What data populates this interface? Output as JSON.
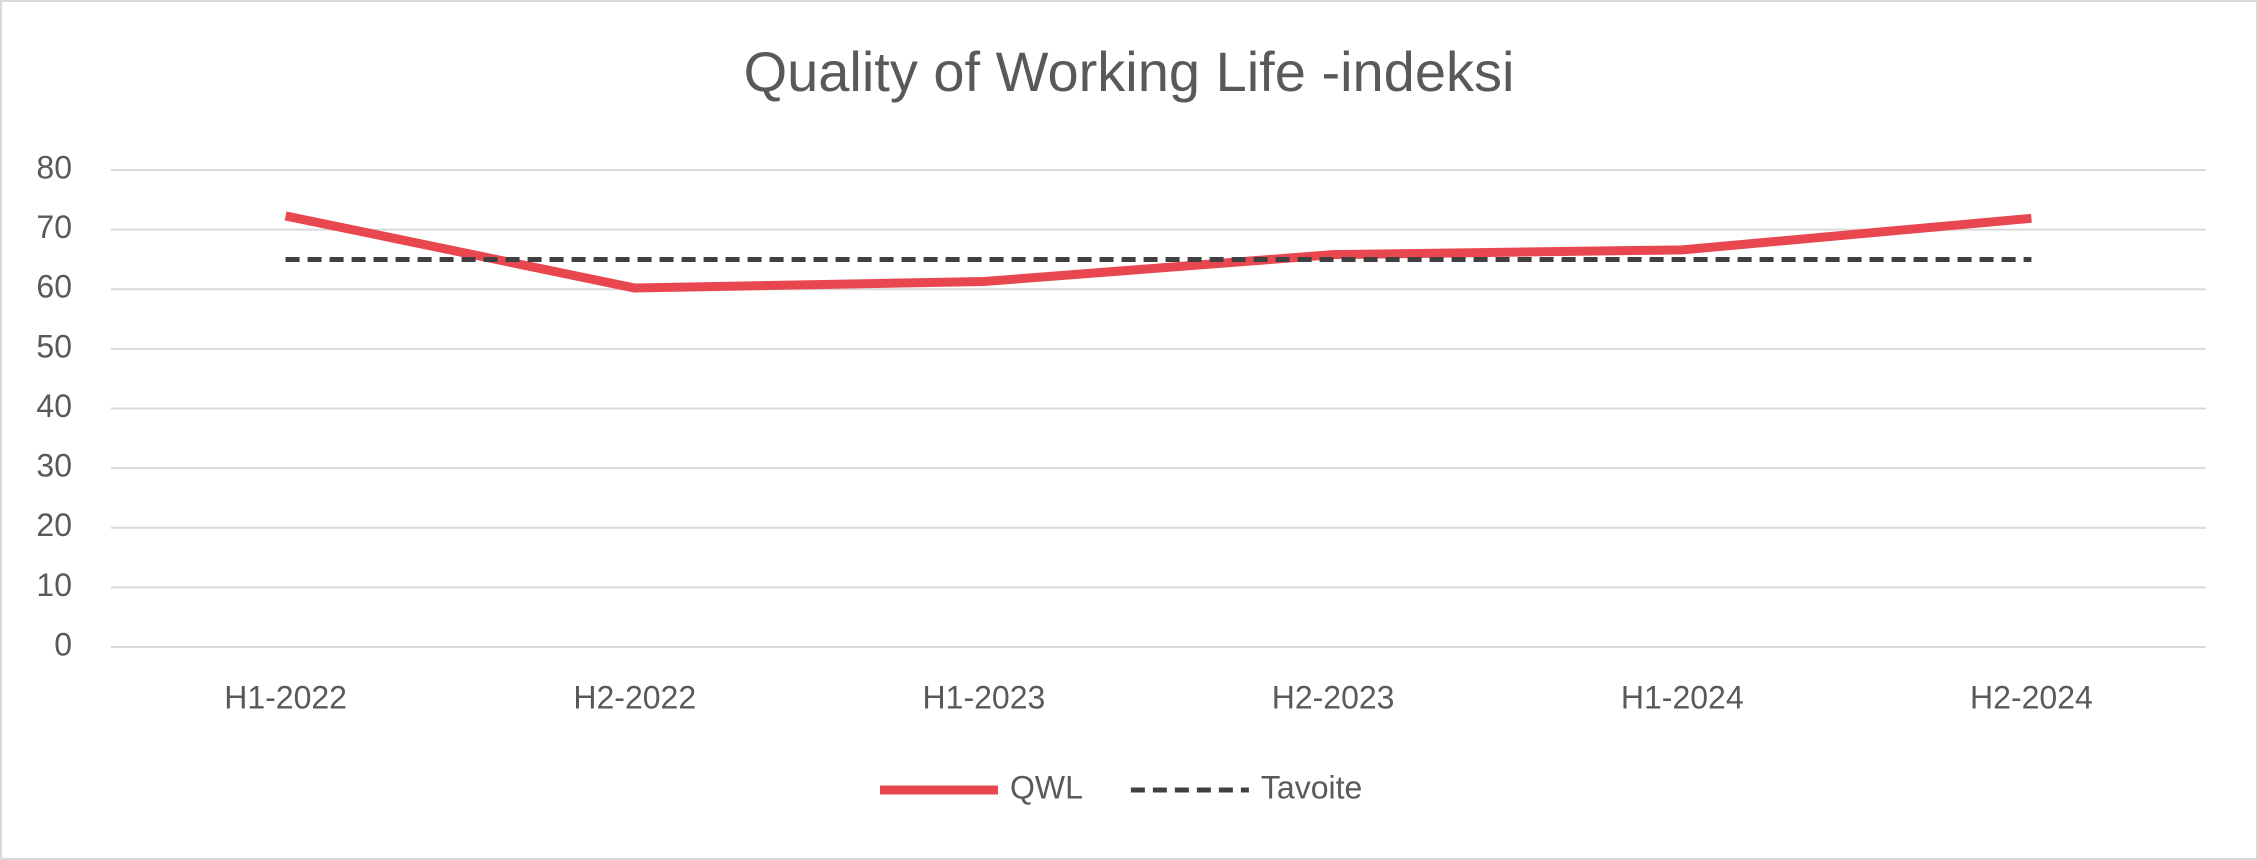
{
  "chart_data": {
    "type": "line",
    "title": "Quality of Working Life -indeksi",
    "categories": [
      "H1-2022",
      "H2-2022",
      "H1-2023",
      "H2-2023",
      "H1-2024",
      "H2-2024"
    ],
    "series": [
      {
        "name": "QWL",
        "color": "#e8474f",
        "line_style": "solid",
        "values": [
          72.3,
          60.2,
          61.3,
          65.8,
          66.6,
          71.9
        ]
      },
      {
        "name": "Tavoite",
        "color": "#404040",
        "line_style": "dashed",
        "values": [
          65,
          65,
          65,
          65,
          65,
          65
        ]
      }
    ],
    "ylim": [
      0,
      80
    ],
    "yticks": [
      0,
      10,
      20,
      30,
      40,
      50,
      60,
      70,
      80
    ],
    "grid": true,
    "legend": "bottom"
  }
}
